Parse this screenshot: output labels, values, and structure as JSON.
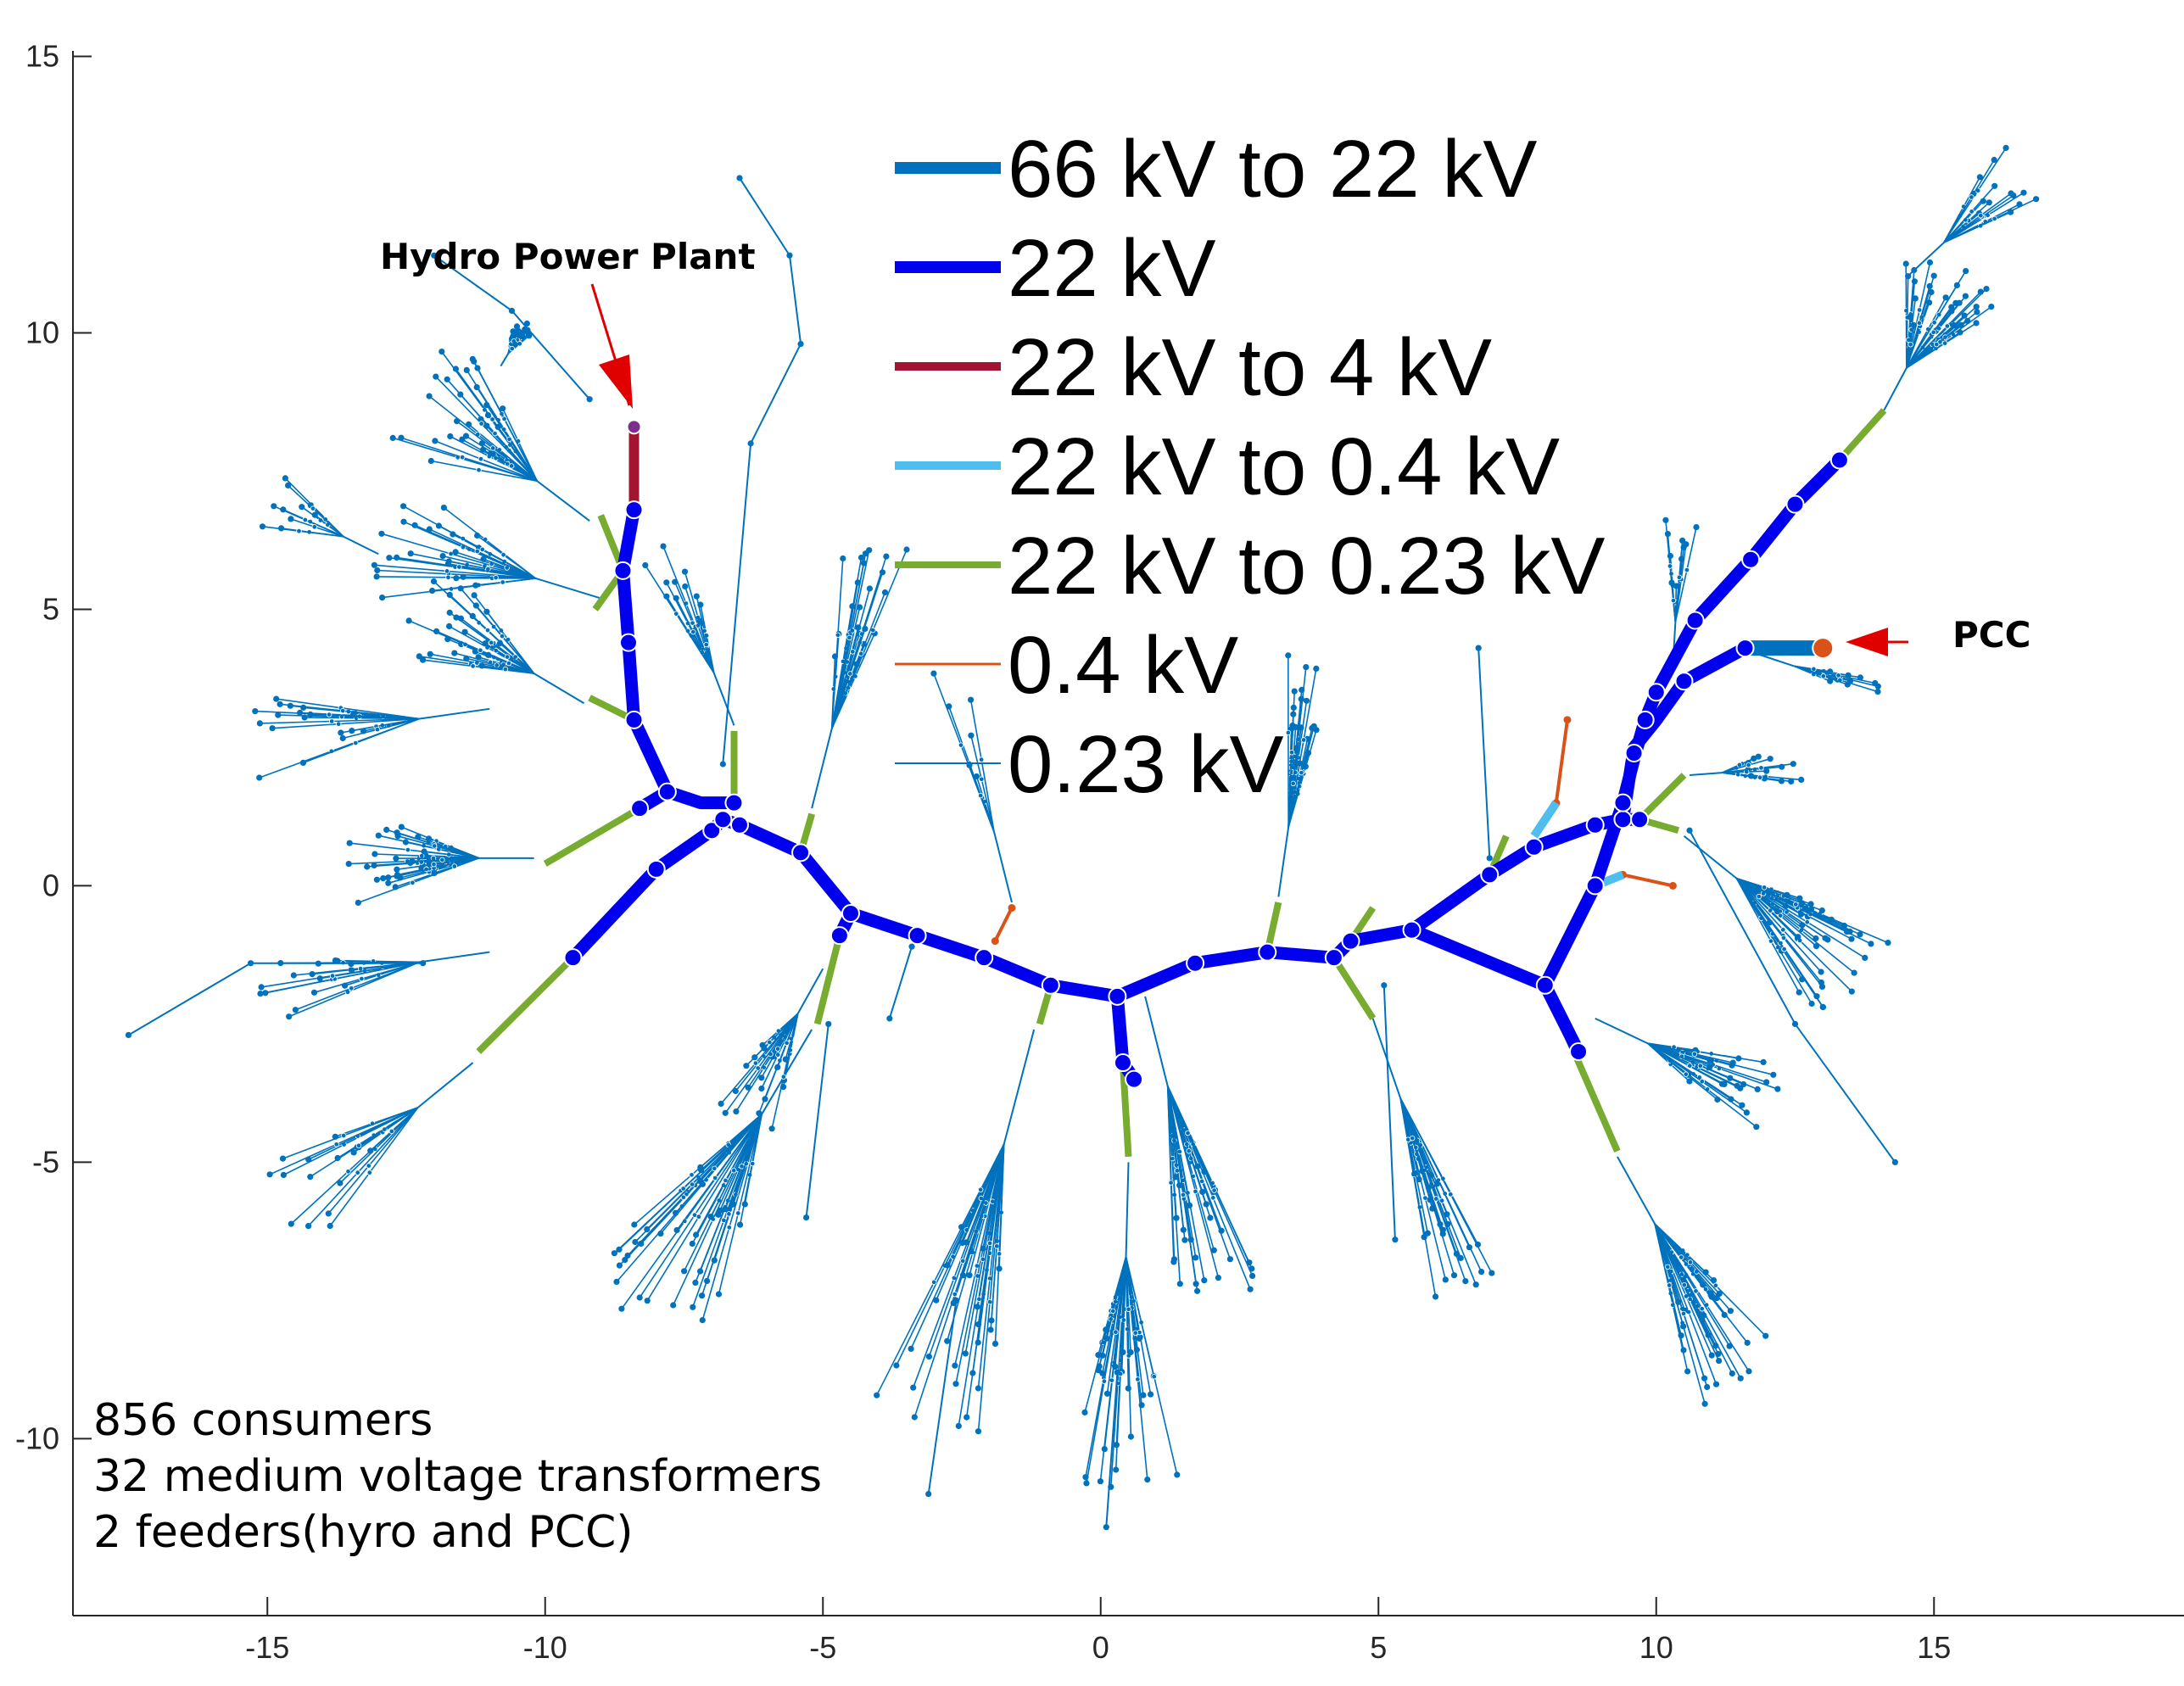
{
  "chart_data": {
    "type": "network",
    "xlim": [
      -18.5,
      19.5
    ],
    "ylim": [
      -13.2,
      15.1
    ],
    "x_ticks": [
      -15,
      -10,
      -5,
      0,
      5,
      10,
      15
    ],
    "x_tick_labels": [
      "-15",
      "-10",
      "-5",
      "0",
      "5",
      "10",
      "15"
    ],
    "y_ticks": [
      -10,
      -5,
      0,
      5,
      10,
      15
    ],
    "y_tick_labels": [
      "-10",
      "-5",
      "0",
      "5",
      "10",
      "15"
    ],
    "grid": false,
    "legend_placement": "top-center",
    "legend": [
      {
        "label": "66 kV to 22 kV",
        "color": "#0072bd",
        "weight": 14
      },
      {
        "label": "22 kV",
        "color": "#0000ee",
        "weight": 14
      },
      {
        "label": "22 kV to 4 kV",
        "color": "#a2142f",
        "weight": 10
      },
      {
        "label": "22 kV to 0.4 kV",
        "color": "#4dbeee",
        "weight": 10
      },
      {
        "label": "22 kV to 0.23 kV",
        "color": "#77ac30",
        "weight": 8
      },
      {
        "label": "0.4 kV",
        "color": "#d95319",
        "weight": 3
      },
      {
        "label": "0.23 kV",
        "color": "#0072bd",
        "weight": 2
      }
    ],
    "main_feeder_22kv": [
      [
        -9.5,
        -1.3
      ],
      [
        -8.0,
        0.3
      ],
      [
        -7.0,
        1.0
      ],
      [
        -6.8,
        1.2
      ],
      [
        -6.5,
        1.1
      ],
      [
        -5.4,
        0.6
      ],
      [
        -4.5,
        -0.5
      ],
      [
        -3.3,
        -0.9
      ],
      [
        -2.1,
        -1.3
      ],
      [
        -0.9,
        -1.8
      ],
      [
        0.3,
        -2.0
      ],
      [
        1.7,
        -1.4
      ],
      [
        3.0,
        -1.2
      ],
      [
        4.2,
        -1.3
      ],
      [
        4.5,
        -1.0
      ],
      [
        5.6,
        -0.8
      ],
      [
        7.0,
        0.2
      ],
      [
        7.8,
        0.7
      ],
      [
        8.9,
        1.1
      ],
      [
        9.4,
        1.2
      ],
      [
        9.7,
        1.2
      ]
    ],
    "branch_22kv": [
      [
        [
          -8.4,
          6.8
        ],
        [
          -8.6,
          5.7
        ],
        [
          -8.5,
          4.4
        ],
        [
          -8.4,
          3.0
        ],
        [
          -7.8,
          1.7
        ],
        [
          -7.2,
          1.5
        ],
        [
          -6.6,
          1.5
        ]
      ],
      [
        [
          -7.8,
          1.7
        ],
        [
          -8.3,
          1.4
        ]
      ],
      [
        [
          0.3,
          -2.0
        ],
        [
          0.4,
          -3.2
        ],
        [
          0.6,
          -3.5
        ]
      ],
      [
        [
          -4.5,
          -0.5
        ],
        [
          -4.7,
          -0.9
        ]
      ],
      [
        [
          5.6,
          -0.8
        ],
        [
          8.0,
          -1.8
        ],
        [
          8.6,
          -3.0
        ]
      ],
      [
        [
          8.0,
          -1.8
        ],
        [
          8.9,
          0.0
        ],
        [
          9.4,
          1.5
        ],
        [
          9.6,
          2.3
        ],
        [
          9.8,
          3.0
        ],
        [
          10.0,
          3.5
        ],
        [
          10.7,
          4.8
        ],
        [
          11.7,
          5.9
        ],
        [
          12.5,
          6.9
        ],
        [
          13.3,
          7.7
        ]
      ],
      [
        [
          9.4,
          1.2
        ],
        [
          9.6,
          2.5
        ],
        [
          10.0,
          3.0
        ],
        [
          10.5,
          3.7
        ],
        [
          11.6,
          4.3
        ]
      ]
    ],
    "feeder_66kv_to_22kv": [
      [
        11.6,
        4.3
      ],
      [
        13.0,
        4.3
      ]
    ],
    "transformer_22kv_to_4kv": [
      [
        -8.4,
        6.8
      ],
      [
        -8.4,
        8.3
      ]
    ],
    "transformers_22kv_to_0_4kv": [
      [
        [
          7.8,
          0.9
        ],
        [
          8.2,
          1.5
        ]
      ],
      [
        [
          8.9,
          0.0
        ],
        [
          9.4,
          0.2
        ]
      ]
    ],
    "transformers_22kv_to_0_23kv": [
      [
        [
          -8.6,
          5.7
        ],
        [
          -9.0,
          6.7
        ]
      ],
      [
        -8.6,
        5.7,
        -9.1,
        5.0
      ],
      [
        [
          -8.4,
          3.0
        ],
        [
          -9.2,
          3.4
        ]
      ],
      [
        [
          -8.3,
          1.4
        ],
        [
          -10.0,
          0.4
        ]
      ],
      [
        [
          -9.5,
          -1.3
        ],
        [
          -11.2,
          -3.0
        ]
      ],
      [
        [
          -6.6,
          1.5
        ],
        [
          -6.6,
          2.8
        ]
      ],
      [
        [
          -5.4,
          0.6
        ],
        [
          -5.2,
          1.3
        ]
      ],
      [
        [
          -4.7,
          -0.9
        ],
        [
          -5.1,
          -2.5
        ]
      ],
      [
        [
          -0.9,
          -1.8
        ],
        [
          -1.1,
          -2.5
        ]
      ],
      [
        [
          0.4,
          -3.2
        ],
        [
          0.5,
          -4.9
        ]
      ],
      [
        [
          3.0,
          -1.2
        ],
        [
          3.2,
          -0.3
        ]
      ],
      [
        [
          4.5,
          -1.0
        ],
        [
          4.9,
          -0.4
        ]
      ],
      [
        [
          4.2,
          -1.3
        ],
        [
          4.9,
          -2.4
        ]
      ],
      [
        [
          7.0,
          0.2
        ],
        [
          7.3,
          0.9
        ]
      ],
      [
        [
          8.0,
          -1.8
        ],
        [
          9.3,
          -4.8
        ]
      ],
      [
        [
          9.7,
          1.2
        ],
        [
          10.4,
          1.0
        ]
      ],
      [
        [
          9.8,
          1.3
        ],
        [
          10.5,
          2.0
        ]
      ],
      [
        [
          13.3,
          7.7
        ],
        [
          14.1,
          8.6
        ]
      ]
    ],
    "lines_0_4kv": [
      [
        [
          8.2,
          1.5
        ],
        [
          8.4,
          3.0
        ]
      ],
      [
        [
          9.4,
          0.2
        ],
        [
          10.3,
          0.0
        ]
      ],
      [
        [
          -1.9,
          -1.0
        ],
        [
          -1.6,
          -0.4
        ]
      ]
    ],
    "feeder_nodes": [
      [
        -8.4,
        6.8
      ],
      [
        -8.6,
        5.7
      ],
      [
        -8.5,
        4.4
      ],
      [
        -8.4,
        3.0
      ],
      [
        -7.8,
        1.7
      ],
      [
        -8.3,
        1.4
      ],
      [
        -9.5,
        -1.3
      ],
      [
        -8.0,
        0.3
      ],
      [
        -7.0,
        1.0
      ],
      [
        -6.8,
        1.2
      ],
      [
        -6.6,
        1.5
      ],
      [
        -6.5,
        1.1
      ],
      [
        -5.4,
        0.6
      ],
      [
        -4.5,
        -0.5
      ],
      [
        -4.7,
        -0.9
      ],
      [
        -3.3,
        -0.9
      ],
      [
        -2.1,
        -1.3
      ],
      [
        -0.9,
        -1.8
      ],
      [
        0.3,
        -2.0
      ],
      [
        0.4,
        -3.2
      ],
      [
        0.6,
        -3.5
      ],
      [
        1.7,
        -1.4
      ],
      [
        3.0,
        -1.2
      ],
      [
        4.2,
        -1.3
      ],
      [
        4.5,
        -1.0
      ],
      [
        5.6,
        -0.8
      ],
      [
        7.0,
        0.2
      ],
      [
        7.8,
        0.7
      ],
      [
        8.9,
        1.1
      ],
      [
        9.4,
        1.2
      ],
      [
        9.7,
        1.2
      ],
      [
        8.0,
        -1.8
      ],
      [
        8.6,
        -3.0
      ],
      [
        8.9,
        0.0
      ],
      [
        9.4,
        1.5
      ],
      [
        9.6,
        2.4
      ],
      [
        9.8,
        3.0
      ],
      [
        10.0,
        3.5
      ],
      [
        10.5,
        3.7
      ],
      [
        10.7,
        4.8
      ],
      [
        11.6,
        4.3
      ],
      [
        11.7,
        5.9
      ],
      [
        12.5,
        6.9
      ],
      [
        13.3,
        7.7
      ]
    ],
    "laterals_0_23kv": [
      {
        "hub": [
          -9.2,
          6.6
        ],
        "target": [
          -11.3,
          8.2
        ],
        "count": 30,
        "spread": 55,
        "seed": 1
      },
      {
        "hub": [
          -10.8,
          9.4
        ],
        "target": [
          -10.5,
          9.9
        ],
        "count": 18,
        "spread": 40,
        "seed": 2
      },
      {
        "hub": [
          -9.0,
          5.2
        ],
        "target": [
          -11.6,
          6.0
        ],
        "count": 26,
        "spread": 50,
        "seed": 3
      },
      {
        "hub": [
          -9.3,
          3.3
        ],
        "target": [
          -11.3,
          4.5
        ],
        "count": 28,
        "spread": 50,
        "seed": 4
      },
      {
        "hub": [
          -11.0,
          3.2
        ],
        "target": [
          -13.8,
          2.8
        ],
        "count": 18,
        "spread": 35,
        "seed": 5
      },
      {
        "hub": [
          -13.0,
          6.0
        ],
        "target": [
          -14.4,
          6.7
        ],
        "count": 10,
        "spread": 40,
        "seed": 6
      },
      {
        "hub": [
          -10.2,
          0.5
        ],
        "target": [
          -12.4,
          0.5
        ],
        "count": 34,
        "spread": 45,
        "seed": 7
      },
      {
        "hub": [
          -11.0,
          -1.2
        ],
        "target": [
          -13.8,
          -1.6
        ],
        "count": 16,
        "spread": 30,
        "seed": 8
      },
      {
        "hub": [
          -11.3,
          -3.2
        ],
        "target": [
          -13.5,
          -5.0
        ],
        "count": 16,
        "spread": 40,
        "seed": 9
      },
      {
        "hub": [
          -6.6,
          2.9
        ],
        "target": [
          -7.4,
          5.0
        ],
        "count": 14,
        "spread": 25,
        "seed": 10
      },
      {
        "hub": [
          -5.2,
          1.4
        ],
        "target": [
          -4.4,
          4.6
        ],
        "count": 22,
        "spread": 25,
        "seed": 11
      },
      {
        "hub": [
          -5.2,
          -2.6
        ],
        "target": [
          -7.2,
          -6.0
        ],
        "count": 40,
        "spread": 40,
        "seed": 12
      },
      {
        "hub": [
          -5.0,
          -1.5
        ],
        "target": [
          -6.0,
          -3.3
        ],
        "count": 20,
        "spread": 40,
        "seed": 13
      },
      {
        "hub": [
          -1.2,
          -2.6
        ],
        "target": [
          -2.4,
          -7.2
        ],
        "count": 32,
        "spread": 25,
        "seed": 14
      },
      {
        "hub": [
          0.5,
          -5.0
        ],
        "target": [
          0.4,
          -8.8
        ],
        "count": 36,
        "spread": 30,
        "seed": 15
      },
      {
        "hub": [
          0.8,
          -2.0
        ],
        "target": [
          1.7,
          -5.6
        ],
        "count": 30,
        "spread": 25,
        "seed": 16
      },
      {
        "hub": [
          3.2,
          -0.2
        ],
        "target": [
          3.6,
          2.6
        ],
        "count": 24,
        "spread": 18,
        "seed": 17
      },
      {
        "hub": [
          4.9,
          -2.4
        ],
        "target": [
          6.0,
          -5.6
        ],
        "count": 26,
        "spread": 20,
        "seed": 18
      },
      {
        "hub": [
          9.3,
          -4.9
        ],
        "target": [
          10.8,
          -7.6
        ],
        "count": 34,
        "spread": 35,
        "seed": 19
      },
      {
        "hub": [
          8.9,
          -2.4
        ],
        "target": [
          11.0,
          -3.4
        ],
        "count": 26,
        "spread": 35,
        "seed": 20
      },
      {
        "hub": [
          10.5,
          0.9
        ],
        "target": [
          12.6,
          -0.8
        ],
        "count": 40,
        "spread": 45,
        "seed": 21
      },
      {
        "hub": [
          10.6,
          2.0
        ],
        "target": [
          11.9,
          2.1
        ],
        "count": 14,
        "spread": 40,
        "seed": 22
      },
      {
        "hub": [
          14.1,
          8.6
        ],
        "target": [
          15.0,
          10.3
        ],
        "count": 34,
        "spread": 60,
        "seed": 23
      },
      {
        "hub": [
          14.5,
          11.0
        ],
        "target": [
          16.0,
          12.4
        ],
        "count": 14,
        "spread": 40,
        "seed": 24
      },
      {
        "hub": [
          10.3,
          4.0
        ],
        "target": [
          10.4,
          5.7
        ],
        "count": 10,
        "spread": 20,
        "seed": 25
      },
      {
        "hub": [
          11.8,
          4.2
        ],
        "target": [
          13.3,
          3.7
        ],
        "count": 10,
        "spread": 20,
        "seed": 26
      },
      {
        "hub": [
          -1.6,
          -0.3
        ],
        "target": [
          -2.3,
          2.5
        ],
        "count": 6,
        "spread": 15,
        "seed": 27
      }
    ],
    "long_lines_0_23kv": [
      [
        [
          -6.8,
          2.2
        ],
        [
          -6.3,
          8.0
        ],
        [
          -5.4,
          9.8
        ],
        [
          -5.6,
          11.4
        ],
        [
          -6.5,
          12.8
        ]
      ],
      [
        [
          -9.2,
          8.8
        ],
        [
          -10.6,
          10.4
        ],
        [
          -12.0,
          11.4
        ]
      ],
      [
        [
          -12.2,
          -1.4
        ],
        [
          -15.3,
          -1.4
        ],
        [
          -17.5,
          -2.7
        ]
      ],
      [
        [
          -4.9,
          -2.5
        ],
        [
          -5.3,
          -6.0
        ]
      ],
      [
        [
          -3.4,
          -1.1
        ],
        [
          -3.8,
          -2.4
        ]
      ],
      [
        [
          -2.6,
          -7.5
        ],
        [
          -3.1,
          -11.0
        ]
      ],
      [
        [
          0.3,
          -8.8
        ],
        [
          0.1,
          -11.6
        ]
      ],
      [
        [
          5.1,
          -1.8
        ],
        [
          5.3,
          -6.4
        ]
      ],
      [
        [
          7.0,
          0.5
        ],
        [
          6.8,
          4.3
        ]
      ],
      [
        [
          10.6,
          1.0
        ],
        [
          12.5,
          -2.5
        ],
        [
          14.3,
          -5.0
        ]
      ]
    ]
  },
  "annotations": {
    "hydro_label": "Hydro Power Plant",
    "pcc_label": "PCC"
  },
  "summary_note": {
    "line1": "856 consumers",
    "line2": "32 medium voltage transformers",
    "line3": "2 feeders(hyro and PCC)"
  }
}
